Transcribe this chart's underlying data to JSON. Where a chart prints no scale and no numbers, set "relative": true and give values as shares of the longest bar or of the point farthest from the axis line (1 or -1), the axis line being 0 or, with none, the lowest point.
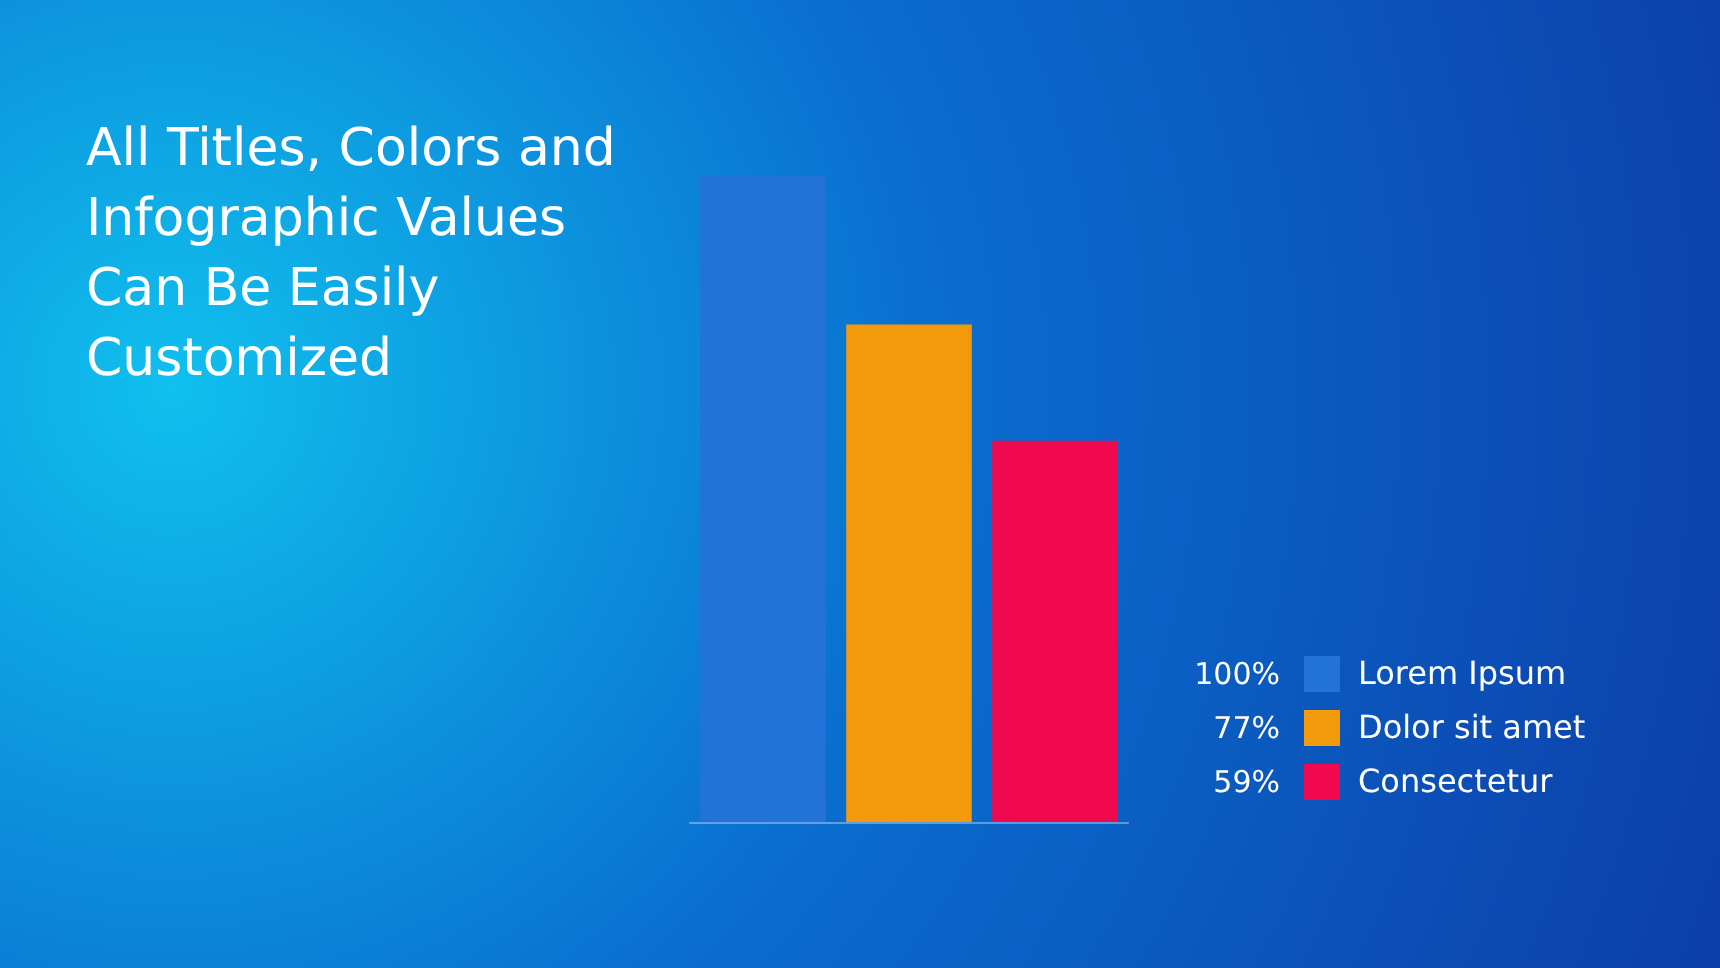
{
  "chart_data": {
    "type": "bar",
    "title": "All Titles, Colors and Infographic Values Can Be Easily Customized",
    "categories": [
      null,
      null,
      null
    ],
    "relative": true,
    "values": [
      1,
      0.77,
      0.59
    ],
    "colors": [
      "#2272d8",
      "#f29a0a",
      "#f0094f"
    ],
    "annotations": [
      "100%",
      "Lorem Ipsum",
      "77%",
      "Dolor sit amet",
      "59%",
      "Consectetur"
    ]
  }
}
